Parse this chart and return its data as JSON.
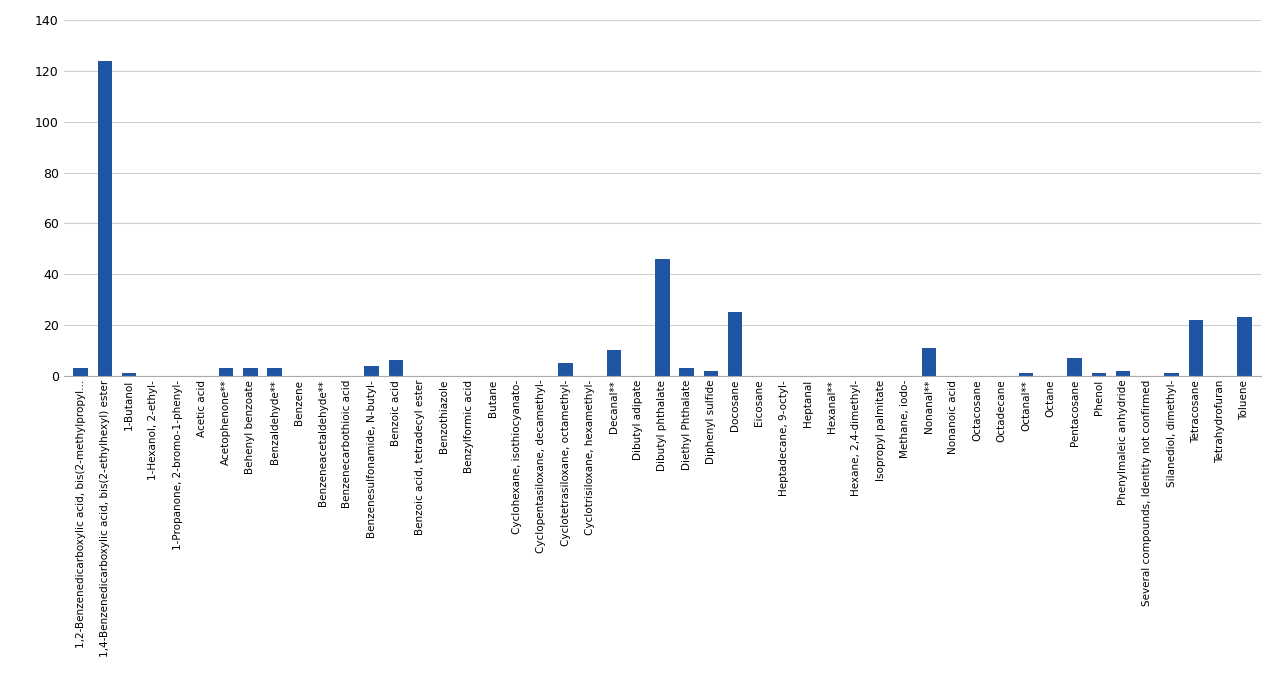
{
  "categories": [
    "1,2-Benzenedicarboxylic acid, bis(2-methylpropyl...",
    "1,4-Benzenedicarboxylic acid, bis(2-ethylhexyl) ester",
    "1-Butanol",
    "1-Hexanol, 2-ethyl-",
    "1-Propanone, 2-bromo-1-phenyl-",
    "Acetic acid",
    "Acetophenone**",
    "Behenyl benzoate",
    "Benzaldehyde**",
    "Benzene",
    "Benzeneacetaldehyde**",
    "Benzenecarbothioic acid",
    "Benzenesulfonamide, N-butyl-",
    "Benzoic acid",
    "Benzoic acid, tetradecyl ester",
    "Benzothiazole",
    "Benzylformic acid",
    "Butane",
    "Cyclohexane, isothiocyanato-",
    "Cyclopentasiloxane, decamethyl-",
    "Cyclotetrasiloxane, octamethyl-",
    "Cyclotrisiloxane, hexamethyl-",
    "Decanal**",
    "Dibutyl adipate",
    "Dibutyl phthalate",
    "Diethyl Phthalate",
    "Diphenyl sulfide",
    "Docosane",
    "Eicosane",
    "Heptadecane, 9-octyl-",
    "Heptanal",
    "Hexanal**",
    "Hexane, 2,4-dimethyl-",
    "Isopropyl palmitate",
    "Methane, iodo-",
    "Nonanal**",
    "Nonanoic acid",
    "Octacosane",
    "Octadecane",
    "Octanal**",
    "Octane",
    "Pentacosane",
    "Phenol",
    "Phenylmaleic anhydride",
    "Several compounds, Identity not confirmed",
    "Silanediol, dimethyl-",
    "Tetracosane",
    "Tetrahydrofuran",
    "Toluene"
  ],
  "values": [
    3,
    124,
    1,
    0,
    0,
    0,
    3,
    3,
    3,
    0,
    0,
    0,
    4,
    6,
    0,
    0,
    0,
    0,
    0,
    0,
    5,
    0,
    10,
    0,
    46,
    3,
    2,
    25,
    0,
    0,
    0,
    0,
    0,
    0,
    0,
    11,
    0,
    0,
    0,
    1,
    0,
    7,
    1,
    2,
    0,
    1,
    22,
    0,
    23
  ],
  "bar_color": "#2055A4",
  "ylim": [
    0,
    140
  ],
  "yticks": [
    0,
    20,
    40,
    60,
    80,
    100,
    120,
    140
  ],
  "tick_fontsize": 7.5,
  "ytick_fontsize": 9,
  "background_color": "#ffffff",
  "grid_color": "#d0d0d0"
}
